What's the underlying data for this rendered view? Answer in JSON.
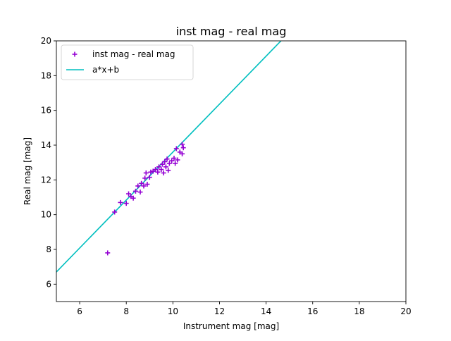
{
  "chart_data": {
    "type": "scatter",
    "title": "inst mag - real mag",
    "xlabel": "Instrument mag [mag]",
    "ylabel": "Real mag [mag]",
    "xlim": [
      5,
      20
    ],
    "ylim": [
      5,
      20
    ],
    "x_ticks": [
      6,
      8,
      10,
      12,
      14,
      16,
      18,
      20
    ],
    "y_ticks": [
      6,
      8,
      10,
      12,
      14,
      16,
      18,
      20
    ],
    "grid": false,
    "legend": {
      "position": "upper-left",
      "entries": [
        {
          "label": "inst mag - real mag",
          "marker": "plus",
          "color": "#9400d3"
        },
        {
          "label": "a*x+b",
          "marker": "line",
          "color": "#00bfbf"
        }
      ]
    },
    "series": [
      {
        "name": "inst mag - real mag",
        "kind": "scatter",
        "marker": "plus",
        "color": "#9400d3",
        "points": [
          {
            "x": 7.2,
            "y": 7.8
          },
          {
            "x": 7.5,
            "y": 10.15
          },
          {
            "x": 7.75,
            "y": 10.7
          },
          {
            "x": 8.0,
            "y": 10.65
          },
          {
            "x": 8.1,
            "y": 11.2
          },
          {
            "x": 8.2,
            "y": 11.05
          },
          {
            "x": 8.3,
            "y": 10.95
          },
          {
            "x": 8.4,
            "y": 11.35
          },
          {
            "x": 8.5,
            "y": 11.65
          },
          {
            "x": 8.6,
            "y": 11.3
          },
          {
            "x": 8.65,
            "y": 11.8
          },
          {
            "x": 8.75,
            "y": 11.65
          },
          {
            "x": 8.8,
            "y": 12.1
          },
          {
            "x": 8.85,
            "y": 12.4
          },
          {
            "x": 8.9,
            "y": 11.75
          },
          {
            "x": 9.0,
            "y": 12.15
          },
          {
            "x": 9.05,
            "y": 12.45
          },
          {
            "x": 9.15,
            "y": 12.5
          },
          {
            "x": 9.25,
            "y": 12.6
          },
          {
            "x": 9.35,
            "y": 12.45
          },
          {
            "x": 9.4,
            "y": 12.75
          },
          {
            "x": 9.5,
            "y": 12.6
          },
          {
            "x": 9.55,
            "y": 12.9
          },
          {
            "x": 9.6,
            "y": 12.4
          },
          {
            "x": 9.65,
            "y": 13.05
          },
          {
            "x": 9.7,
            "y": 12.75
          },
          {
            "x": 9.75,
            "y": 13.2
          },
          {
            "x": 9.8,
            "y": 12.55
          },
          {
            "x": 9.85,
            "y": 12.95
          },
          {
            "x": 9.95,
            "y": 13.1
          },
          {
            "x": 10.05,
            "y": 13.25
          },
          {
            "x": 10.1,
            "y": 12.95
          },
          {
            "x": 10.15,
            "y": 13.8
          },
          {
            "x": 10.2,
            "y": 13.15
          },
          {
            "x": 10.3,
            "y": 13.6
          },
          {
            "x": 10.4,
            "y": 14.05
          },
          {
            "x": 10.45,
            "y": 13.85
          },
          {
            "x": 10.4,
            "y": 13.5
          }
        ]
      },
      {
        "name": "a*x+b",
        "kind": "line",
        "color": "#00bfbf",
        "slope": 1.38,
        "intercept": -0.2
      }
    ]
  }
}
